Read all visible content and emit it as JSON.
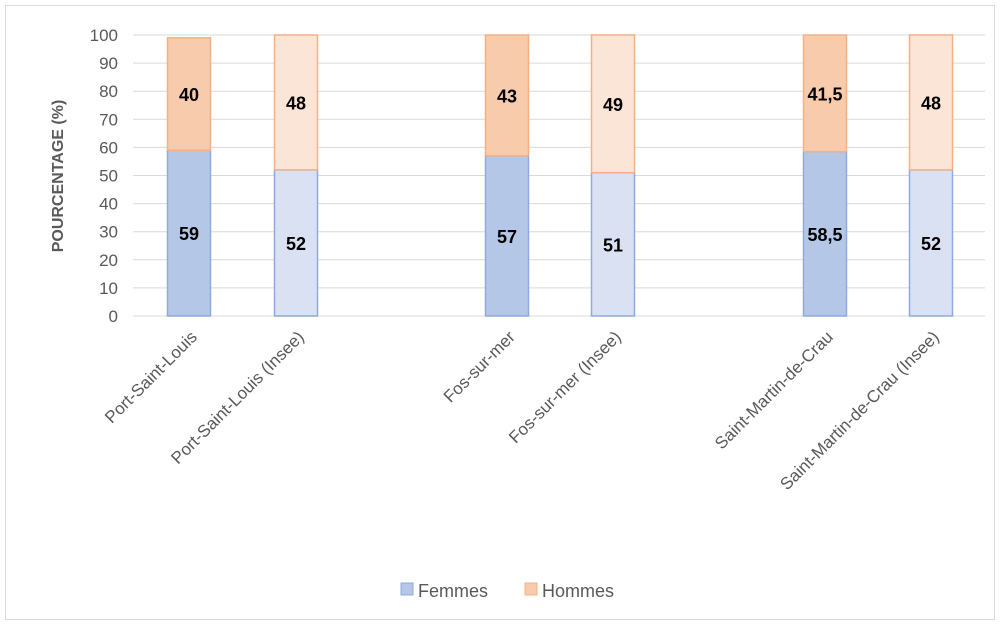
{
  "chart_data": {
    "type": "bar",
    "stacked": true,
    "categories": [
      "Port-Saint-Louis",
      "Port-Saint-Louis (Insee)",
      "Fos-sur-mer",
      "Fos-sur-mer (Insee)",
      "Saint-Martin-de-Crau",
      "Saint-Martin-de-Crau (Insee)"
    ],
    "series": [
      {
        "name": "Femmes",
        "values": [
          59,
          52,
          57,
          51,
          58.5,
          52
        ],
        "labels": [
          "59",
          "52",
          "57",
          "51",
          "58,5",
          "52"
        ],
        "colors": [
          "#b4c7e7",
          "#d9e1f2",
          "#b4c7e7",
          "#d9e1f2",
          "#b4c7e7",
          "#d9e1f2"
        ],
        "stroke": "#8faadc"
      },
      {
        "name": "Hommes",
        "values": [
          40,
          48,
          43,
          49,
          41.5,
          48
        ],
        "labels": [
          "40",
          "48",
          "43",
          "49",
          "41,5",
          "48"
        ],
        "colors": [
          "#f8cbad",
          "#fbe5d6",
          "#f8cbad",
          "#fbe5d6",
          "#f8cbad",
          "#fbe5d6"
        ],
        "stroke": "#f4b183"
      }
    ],
    "ylabel": "POURCENTAGE (%)",
    "xlabel": "",
    "ylim": [
      0,
      100
    ],
    "yticks": [
      0,
      10,
      20,
      30,
      40,
      50,
      60,
      70,
      80,
      90,
      100
    ],
    "grid": true,
    "legend": "bottom"
  }
}
